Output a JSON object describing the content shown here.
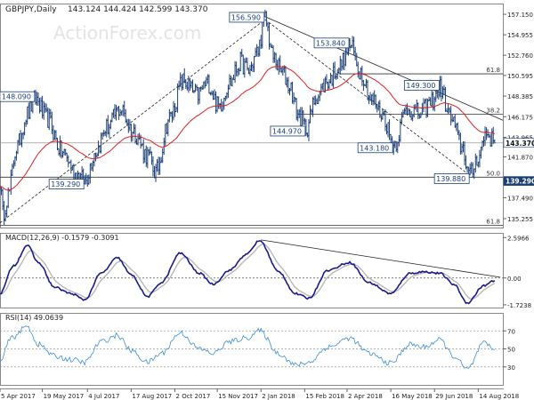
{
  "watermark": "ActionForex.com",
  "chart_data": [
    {
      "type": "line",
      "panel": "price",
      "title": "GBPJPY,Daily",
      "ohlc_readout": "143.124 144.424 142.599 143.370",
      "ylim": [
        134.3,
        158.3
      ],
      "x_ticks": [
        {
          "label": "5 Apr 2017",
          "i": 0
        },
        {
          "label": "19 May 2017",
          "i": 31
        },
        {
          "label": "4 Jul 2017",
          "i": 64
        },
        {
          "label": "17 Aug 2017",
          "i": 96
        },
        {
          "label": "2 Oct 2017",
          "i": 128
        },
        {
          "label": "15 Nov 2017",
          "i": 159
        },
        {
          "label": "2 Jan 2018",
          "i": 191
        },
        {
          "label": "15 Feb 2018",
          "i": 223
        },
        {
          "label": "2 Apr 2018",
          "i": 254
        },
        {
          "label": "16 May 2018",
          "i": 286
        },
        {
          "label": "29 Jun 2018",
          "i": 318
        },
        {
          "label": "14 Aug 2018",
          "i": 350
        }
      ],
      "y_ticks": [
        {
          "label": "157.150",
          "value": 157.15
        },
        {
          "label": "154.955",
          "value": 154.955
        },
        {
          "label": "152.760",
          "value": 152.76
        },
        {
          "label": "150.595",
          "value": 150.595
        },
        {
          "label": "148.385",
          "value": 148.385
        },
        {
          "label": "146.175",
          "value": 146.175
        },
        {
          "label": "143.965",
          "value": 143.965
        },
        {
          "label": "141.870",
          "value": 141.87
        },
        {
          "label": "137.490",
          "value": 137.49
        },
        {
          "label": "135.255",
          "value": 135.255
        }
      ],
      "last_price": {
        "label": "143.370",
        "value": 143.37
      },
      "support": {
        "label": "139.290",
        "value": 139.29
      },
      "anchors": [
        {
          "i": 0,
          "v": 139.5
        },
        {
          "i": 2,
          "v": 135.7
        },
        {
          "i": 6,
          "v": 137.8
        },
        {
          "i": 12,
          "v": 142.8
        },
        {
          "i": 20,
          "v": 146.5
        },
        {
          "i": 26,
          "v": 148.09
        },
        {
          "i": 34,
          "v": 146.0
        },
        {
          "i": 46,
          "v": 142.3
        },
        {
          "i": 56,
          "v": 140.0
        },
        {
          "i": 62,
          "v": 139.29
        },
        {
          "i": 70,
          "v": 142.5
        },
        {
          "i": 78,
          "v": 145.0
        },
        {
          "i": 88,
          "v": 147.0
        },
        {
          "i": 98,
          "v": 144.5
        },
        {
          "i": 108,
          "v": 142.0
        },
        {
          "i": 114,
          "v": 140.2
        },
        {
          "i": 124,
          "v": 146.0
        },
        {
          "i": 134,
          "v": 150.0
        },
        {
          "i": 144,
          "v": 148.5
        },
        {
          "i": 152,
          "v": 149.8
        },
        {
          "i": 160,
          "v": 147.3
        },
        {
          "i": 168,
          "v": 149.8
        },
        {
          "i": 176,
          "v": 152.0
        },
        {
          "i": 182,
          "v": 151.0
        },
        {
          "i": 188,
          "v": 153.0
        },
        {
          "i": 194,
          "v": 156.59
        },
        {
          "i": 200,
          "v": 152.5
        },
        {
          "i": 206,
          "v": 151.0
        },
        {
          "i": 212,
          "v": 149.5
        },
        {
          "i": 218,
          "v": 146.5
        },
        {
          "i": 224,
          "v": 144.97
        },
        {
          "i": 232,
          "v": 148.5
        },
        {
          "i": 240,
          "v": 150.0
        },
        {
          "i": 248,
          "v": 151.5
        },
        {
          "i": 256,
          "v": 153.84
        },
        {
          "i": 264,
          "v": 151.0
        },
        {
          "i": 272,
          "v": 148.0
        },
        {
          "i": 280,
          "v": 146.5
        },
        {
          "i": 288,
          "v": 143.18
        },
        {
          "i": 298,
          "v": 147.0
        },
        {
          "i": 308,
          "v": 146.5
        },
        {
          "i": 314,
          "v": 147.5
        },
        {
          "i": 322,
          "v": 149.3
        },
        {
          "i": 330,
          "v": 146.0
        },
        {
          "i": 338,
          "v": 143.0
        },
        {
          "i": 344,
          "v": 139.88
        },
        {
          "i": 350,
          "v": 142.0
        },
        {
          "i": 356,
          "v": 144.5
        },
        {
          "i": 362,
          "v": 143.37
        }
      ],
      "trendlines": [
        {
          "from": {
            "i": 0,
            "v": 134.8
          },
          "to": {
            "i": 194,
            "v": 156.59
          },
          "style": "dashed"
        },
        {
          "from": {
            "i": 194,
            "v": 156.59
          },
          "to": {
            "i": 344,
            "v": 139.88
          },
          "style": "dashed"
        },
        {
          "from": {
            "i": 194,
            "v": 156.9
          },
          "to": {
            "i": 368,
            "v": 145.8
          },
          "style": "solid"
        }
      ],
      "levels": [
        {
          "value": 146.43,
          "label": "38.2",
          "from_i": 218
        },
        {
          "value": 150.77,
          "label": "61.8",
          "from_i": 248
        },
        {
          "value": 139.7,
          "label": "50.0",
          "from_i": 0
        },
        {
          "value": 134.55,
          "label": "61.8",
          "from_i": 0
        }
      ],
      "annotations": [
        {
          "text": "156.590",
          "i": 194,
          "v": 156.59,
          "pos": "left-top"
        },
        {
          "text": "153.840",
          "i": 256,
          "v": 153.84,
          "pos": "left-top"
        },
        {
          "text": "149.300",
          "i": 322,
          "v": 149.3,
          "pos": "left-top"
        },
        {
          "text": "148.090",
          "i": 26,
          "v": 148.09,
          "pos": "left-top"
        },
        {
          "text": "144.970",
          "i": 224,
          "v": 144.97,
          "pos": "left-bottom"
        },
        {
          "text": "143.180",
          "i": 288,
          "v": 143.18,
          "pos": "left-bottom"
        },
        {
          "text": "139.290",
          "i": 62,
          "v": 139.29,
          "pos": "left-bottom"
        },
        {
          "text": "139.880",
          "i": 344,
          "v": 139.88,
          "pos": "left-bottom"
        }
      ]
    },
    {
      "type": "line",
      "panel": "macd",
      "title": "MACD(12,26,9) -0.1579 -0.3091",
      "y_ticks": [
        {
          "label": "2.5966",
          "value": 2.5966
        },
        {
          "label": "0.00",
          "value": 0
        },
        {
          "label": "-1.7238",
          "value": -1.7238
        }
      ],
      "trendline": {
        "from": {
          "i": 191,
          "v": 2.45
        },
        "to": {
          "i": 366,
          "v": 0.05
        }
      },
      "anchors": [
        {
          "i": 0,
          "v": -1.0
        },
        {
          "i": 10,
          "v": 0.8
        },
        {
          "i": 20,
          "v": 2.1
        },
        {
          "i": 28,
          "v": 1.0
        },
        {
          "i": 40,
          "v": -0.6
        },
        {
          "i": 52,
          "v": -1.0
        },
        {
          "i": 62,
          "v": -1.4
        },
        {
          "i": 74,
          "v": 0.3
        },
        {
          "i": 86,
          "v": 1.3
        },
        {
          "i": 96,
          "v": 0.2
        },
        {
          "i": 108,
          "v": -1.2
        },
        {
          "i": 118,
          "v": -0.3
        },
        {
          "i": 132,
          "v": 1.6
        },
        {
          "i": 146,
          "v": 0.3
        },
        {
          "i": 156,
          "v": -0.4
        },
        {
          "i": 168,
          "v": 0.5
        },
        {
          "i": 180,
          "v": 1.5
        },
        {
          "i": 190,
          "v": 2.4
        },
        {
          "i": 204,
          "v": 0.4
        },
        {
          "i": 216,
          "v": -1.0
        },
        {
          "i": 226,
          "v": -1.3
        },
        {
          "i": 240,
          "v": 0.5
        },
        {
          "i": 256,
          "v": 1.0
        },
        {
          "i": 270,
          "v": -0.3
        },
        {
          "i": 286,
          "v": -1.0
        },
        {
          "i": 300,
          "v": 0.3
        },
        {
          "i": 310,
          "v": 0.4
        },
        {
          "i": 322,
          "v": 0.3
        },
        {
          "i": 332,
          "v": -0.4
        },
        {
          "i": 342,
          "v": -1.6
        },
        {
          "i": 354,
          "v": -0.5
        },
        {
          "i": 362,
          "v": -0.16
        }
      ]
    },
    {
      "type": "line",
      "panel": "rsi",
      "title": "RSI(14) 49.0639",
      "ylim": [
        10,
        90
      ],
      "y_ticks": [
        {
          "label": "70",
          "value": 70
        },
        {
          "label": "50",
          "value": 50
        },
        {
          "label": "30",
          "value": 30
        }
      ],
      "anchors": [
        {
          "i": 0,
          "v": 35
        },
        {
          "i": 8,
          "v": 62
        },
        {
          "i": 20,
          "v": 75
        },
        {
          "i": 28,
          "v": 55
        },
        {
          "i": 40,
          "v": 42
        },
        {
          "i": 52,
          "v": 38
        },
        {
          "i": 62,
          "v": 35
        },
        {
          "i": 74,
          "v": 58
        },
        {
          "i": 86,
          "v": 65
        },
        {
          "i": 96,
          "v": 48
        },
        {
          "i": 108,
          "v": 35
        },
        {
          "i": 118,
          "v": 45
        },
        {
          "i": 132,
          "v": 68
        },
        {
          "i": 146,
          "v": 50
        },
        {
          "i": 156,
          "v": 45
        },
        {
          "i": 168,
          "v": 58
        },
        {
          "i": 180,
          "v": 62
        },
        {
          "i": 190,
          "v": 70
        },
        {
          "i": 204,
          "v": 45
        },
        {
          "i": 216,
          "v": 32
        },
        {
          "i": 226,
          "v": 35
        },
        {
          "i": 240,
          "v": 52
        },
        {
          "i": 256,
          "v": 62
        },
        {
          "i": 270,
          "v": 45
        },
        {
          "i": 286,
          "v": 34
        },
        {
          "i": 300,
          "v": 55
        },
        {
          "i": 310,
          "v": 52
        },
        {
          "i": 322,
          "v": 60
        },
        {
          "i": 332,
          "v": 42
        },
        {
          "i": 342,
          "v": 27
        },
        {
          "i": 354,
          "v": 56
        },
        {
          "i": 362,
          "v": 49.06
        }
      ]
    }
  ]
}
